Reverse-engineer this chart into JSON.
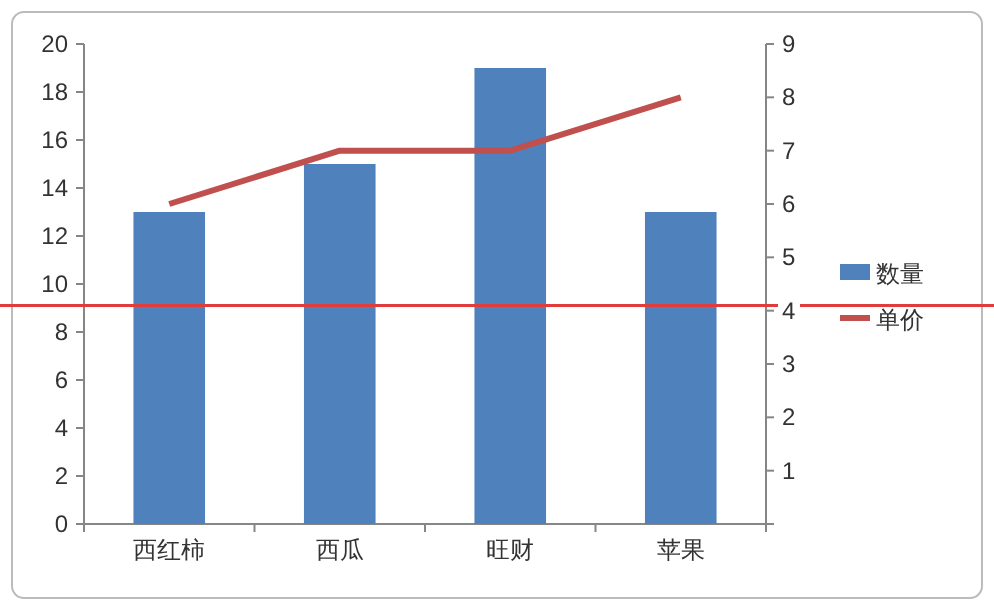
{
  "chart_data": {
    "type": "bar",
    "categories": [
      "西红柿",
      "西瓜",
      "旺财",
      "苹果"
    ],
    "series": [
      {
        "name": "数量",
        "color": "#4f81bd",
        "values": [
          13,
          15,
          19,
          13
        ]
      },
      {
        "name": "单价",
        "type": "line",
        "axis": "y2",
        "color": "#c0504d",
        "values": [
          6,
          7,
          7,
          8
        ]
      }
    ],
    "ylim": [
      0,
      20
    ],
    "yticks": [
      0,
      2,
      4,
      6,
      8,
      10,
      12,
      14,
      16,
      18,
      20
    ],
    "y2lim": [
      0,
      9
    ],
    "y2ticks": [
      {
        "value": 0,
        "label": null
      },
      1,
      2,
      3,
      4,
      5,
      6,
      7,
      8,
      9
    ],
    "ref_lines": [
      {
        "axis": "y",
        "value": 9.1,
        "color": "#e03c3c"
      }
    ],
    "legend": "right",
    "grid": false
  }
}
